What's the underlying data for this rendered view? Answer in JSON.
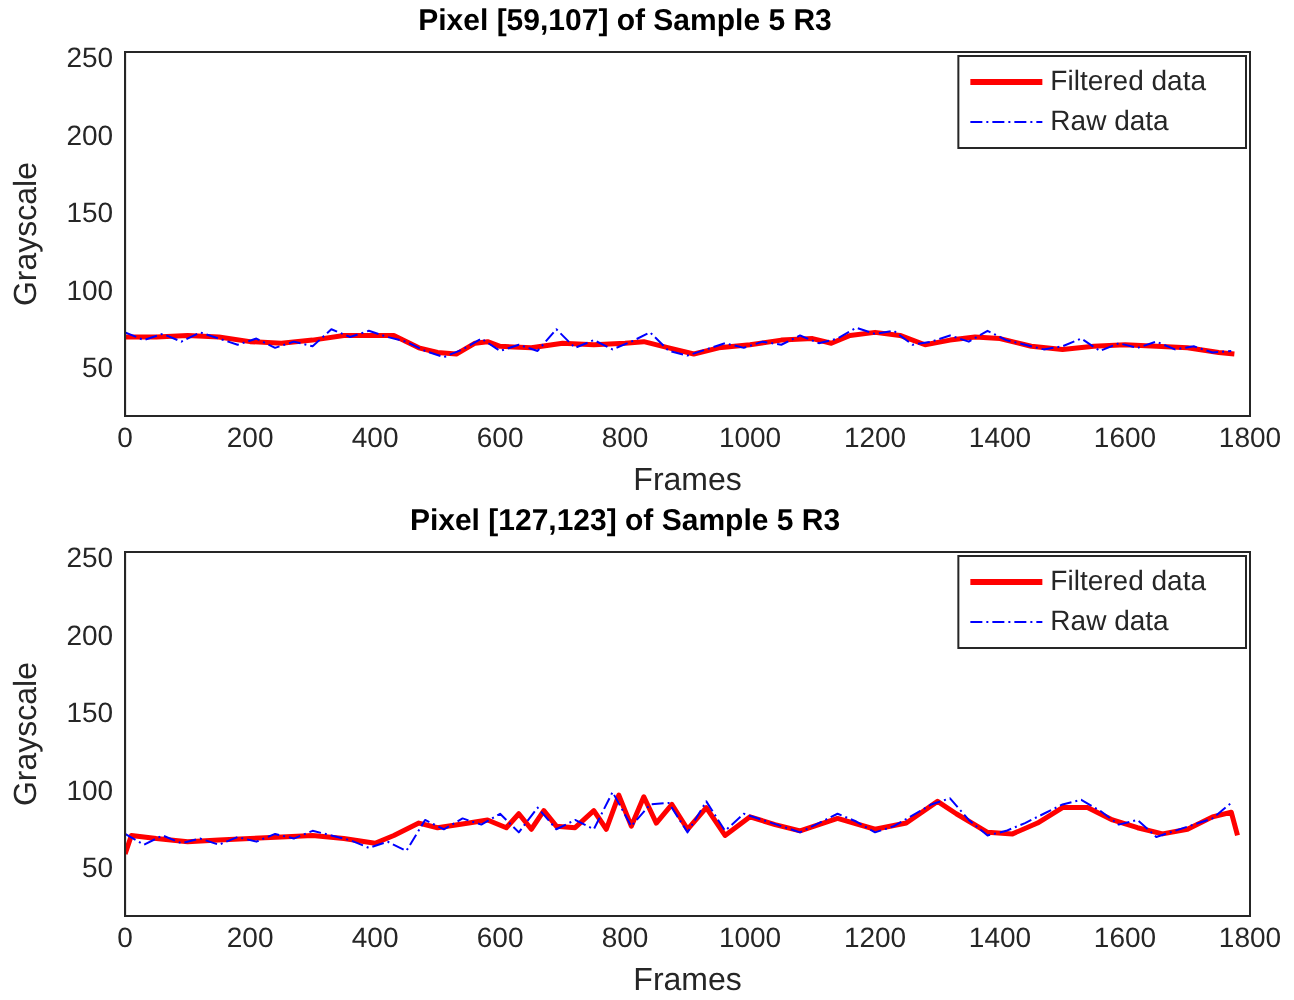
{
  "chart_data": [
    {
      "type": "line",
      "title": "Pixel [59,107] of Sample 5 R3",
      "xlabel": "Frames",
      "ylabel": "Grayscale",
      "xlim": [
        0,
        1800
      ],
      "xticks": [
        0,
        200,
        400,
        600,
        800,
        1000,
        1200,
        1400,
        1600,
        1800
      ],
      "ylim": [
        20,
        255
      ],
      "yticks": [
        50,
        100,
        150,
        200,
        250
      ],
      "grid": false,
      "legend": "top right",
      "marker": "none",
      "series": [
        {
          "name": "Filtered data",
          "color": "#ff0000",
          "line_style": "solid",
          "x": [
            0,
            50,
            100,
            150,
            200,
            250,
            300,
            350,
            400,
            430,
            470,
            500,
            530,
            560,
            580,
            600,
            650,
            700,
            750,
            800,
            830,
            870,
            910,
            950,
            1000,
            1050,
            1100,
            1130,
            1160,
            1200,
            1240,
            1280,
            1320,
            1360,
            1400,
            1450,
            1500,
            1550,
            1600,
            1650,
            1700,
            1750,
            1775
          ],
          "values": [
            71,
            71,
            72,
            71,
            68,
            67,
            69,
            72,
            72,
            72,
            64,
            61,
            60,
            67,
            68,
            65,
            64,
            67,
            66,
            67,
            68,
            64,
            60,
            64,
            66,
            69,
            70,
            67,
            72,
            74,
            72,
            66,
            69,
            71,
            70,
            65,
            63,
            65,
            66,
            65,
            64,
            61,
            60
          ]
        },
        {
          "name": "Raw data",
          "color": "#0000ff",
          "line_style": "dashed",
          "x": [
            0,
            30,
            60,
            90,
            120,
            150,
            180,
            210,
            240,
            270,
            300,
            330,
            360,
            390,
            420,
            450,
            480,
            510,
            540,
            570,
            600,
            630,
            660,
            690,
            720,
            750,
            780,
            810,
            840,
            870,
            900,
            930,
            960,
            990,
            1020,
            1050,
            1080,
            1110,
            1140,
            1170,
            1200,
            1230,
            1260,
            1290,
            1320,
            1350,
            1380,
            1410,
            1440,
            1470,
            1500,
            1530,
            1560,
            1590,
            1620,
            1650,
            1680,
            1710,
            1740,
            1770
          ],
          "values": [
            74,
            69,
            73,
            68,
            74,
            70,
            66,
            70,
            64,
            68,
            65,
            76,
            71,
            75,
            71,
            68,
            62,
            58,
            63,
            70,
            62,
            66,
            62,
            76,
            64,
            69,
            63,
            68,
            74,
            62,
            59,
            63,
            67,
            64,
            68,
            66,
            72,
            67,
            70,
            77,
            73,
            75,
            66,
            68,
            72,
            68,
            75,
            69,
            66,
            63,
            65,
            70,
            62,
            67,
            64,
            68,
            63,
            65,
            61,
            62
          ]
        }
      ]
    },
    {
      "type": "line",
      "title": "Pixel [127,123] of Sample 5 R3",
      "xlabel": "Frames",
      "ylabel": "Grayscale",
      "xlim": [
        0,
        1800
      ],
      "xticks": [
        0,
        200,
        400,
        600,
        800,
        1000,
        1200,
        1400,
        1600,
        1800
      ],
      "ylim": [
        20,
        255
      ],
      "yticks": [
        50,
        100,
        150,
        200,
        250
      ],
      "grid": false,
      "legend": "top right",
      "marker": "none",
      "series": [
        {
          "name": "Filtered data",
          "color": "#ff0000",
          "line_style": "solid",
          "x": [
            0,
            10,
            50,
            100,
            150,
            200,
            250,
            300,
            350,
            400,
            430,
            470,
            500,
            550,
            580,
            610,
            630,
            650,
            670,
            690,
            720,
            750,
            770,
            790,
            810,
            830,
            850,
            875,
            900,
            930,
            960,
            1000,
            1040,
            1080,
            1140,
            1200,
            1250,
            1300,
            1330,
            1380,
            1420,
            1460,
            1500,
            1540,
            1580,
            1620,
            1660,
            1700,
            1740,
            1770,
            1780
          ],
          "values": [
            60,
            72,
            70,
            68,
            69,
            70,
            71,
            72,
            70,
            67,
            72,
            80,
            77,
            80,
            82,
            77,
            86,
            76,
            88,
            78,
            77,
            88,
            76,
            98,
            78,
            97,
            80,
            92,
            76,
            90,
            72,
            84,
            79,
            75,
            83,
            76,
            80,
            94,
            86,
            74,
            73,
            80,
            90,
            90,
            82,
            77,
            73,
            76,
            84,
            87,
            72
          ]
        },
        {
          "name": "Raw data",
          "color": "#0000ff",
          "line_style": "dashed",
          "x": [
            0,
            30,
            60,
            90,
            120,
            150,
            180,
            210,
            240,
            270,
            300,
            330,
            360,
            390,
            420,
            450,
            480,
            510,
            540,
            570,
            600,
            630,
            660,
            690,
            720,
            750,
            780,
            810,
            840,
            870,
            900,
            930,
            960,
            990,
            1020,
            1050,
            1080,
            1110,
            1140,
            1170,
            1200,
            1230,
            1260,
            1290,
            1320,
            1350,
            1380,
            1410,
            1440,
            1470,
            1500,
            1530,
            1560,
            1590,
            1620,
            1650,
            1680,
            1710,
            1740,
            1770
          ],
          "values": [
            73,
            66,
            72,
            67,
            70,
            66,
            71,
            68,
            73,
            70,
            75,
            72,
            69,
            64,
            68,
            62,
            82,
            76,
            83,
            79,
            86,
            74,
            90,
            76,
            82,
            76,
            100,
            78,
            92,
            93,
            74,
            94,
            75,
            86,
            82,
            78,
            74,
            80,
            86,
            81,
            74,
            78,
            85,
            92,
            96,
            82,
            72,
            75,
            80,
            86,
            92,
            95,
            88,
            79,
            82,
            71,
            75,
            79,
            83,
            93
          ]
        }
      ]
    }
  ]
}
